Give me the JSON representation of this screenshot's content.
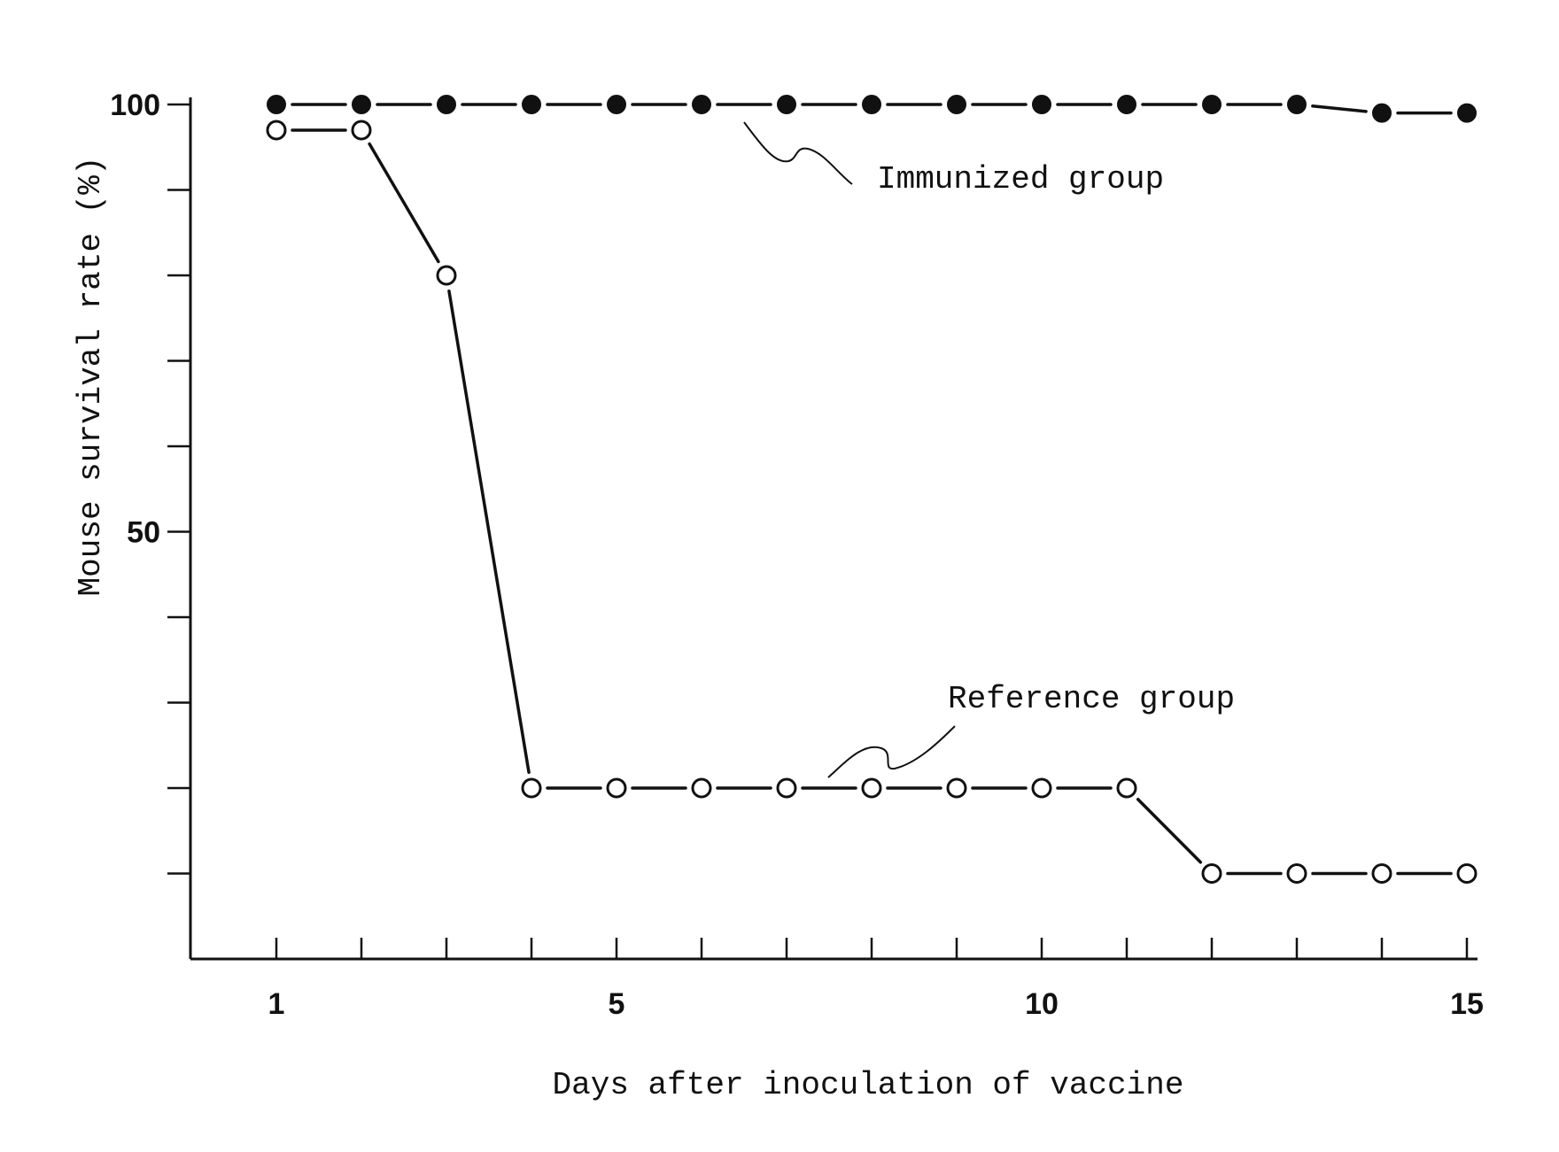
{
  "chart_data": {
    "type": "line",
    "title": "",
    "xlabel": "Days after inoculation of vaccine",
    "ylabel": "Mouse survival rate (%)",
    "xlim": [
      0,
      15
    ],
    "ylim": [
      0,
      100
    ],
    "xticks": [
      1,
      2,
      3,
      4,
      5,
      6,
      7,
      8,
      9,
      10,
      11,
      12,
      13,
      14,
      15
    ],
    "xtick_labels": [
      {
        "value": 1,
        "label": "1"
      },
      {
        "value": 5,
        "label": "5"
      },
      {
        "value": 10,
        "label": "10"
      },
      {
        "value": 15,
        "label": "15"
      }
    ],
    "yticks": [
      10,
      20,
      30,
      40,
      50,
      60,
      70,
      80,
      90,
      100
    ],
    "ytick_labels": [
      {
        "value": 50,
        "label": "50"
      },
      {
        "value": 100,
        "label": "100"
      }
    ],
    "grid": false,
    "x": [
      1,
      2,
      3,
      4,
      5,
      6,
      7,
      8,
      9,
      10,
      11,
      12,
      13,
      14,
      15
    ],
    "series": [
      {
        "name": "Immunized group",
        "marker": "filled-circle",
        "line": "dashed",
        "values": [
          100,
          100,
          100,
          100,
          100,
          100,
          100,
          100,
          100,
          100,
          100,
          100,
          100,
          99,
          99
        ]
      },
      {
        "name": "Reference group",
        "marker": "open-circle",
        "line": "solid",
        "values": [
          97,
          97,
          80,
          20,
          20,
          20,
          20,
          20,
          20,
          20,
          20,
          10,
          10,
          10,
          10
        ]
      }
    ],
    "annotations": [
      {
        "text": "Immunized group",
        "series": 0
      },
      {
        "text": "Reference group",
        "series": 1
      }
    ]
  }
}
